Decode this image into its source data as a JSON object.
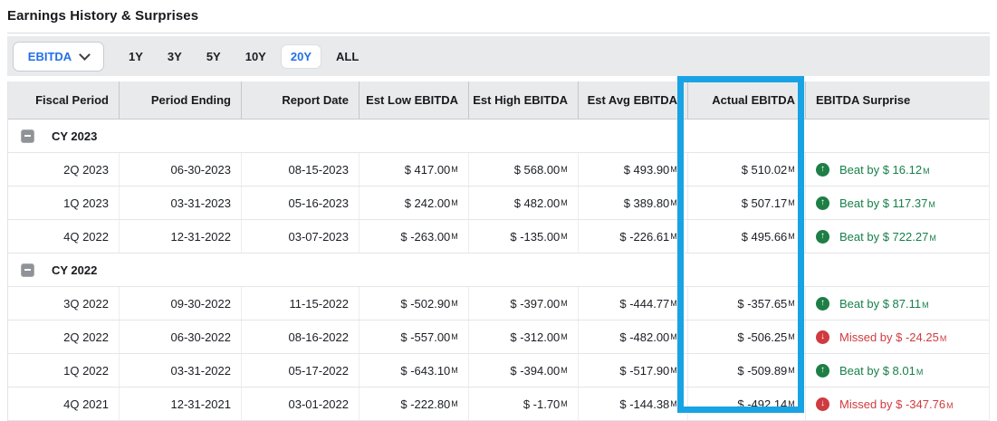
{
  "title": "Earnings History & Surprises",
  "toolbar": {
    "metric_label": "EBITDA",
    "ranges": [
      {
        "label": "1Y",
        "selected": false
      },
      {
        "label": "3Y",
        "selected": false
      },
      {
        "label": "5Y",
        "selected": false
      },
      {
        "label": "10Y",
        "selected": false
      },
      {
        "label": "20Y",
        "selected": true
      },
      {
        "label": "ALL",
        "selected": false
      }
    ]
  },
  "table": {
    "columns": [
      "Fiscal Period",
      "Period Ending",
      "Report Date",
      "Est Low EBITDA",
      "Est High EBITDA",
      "Est Avg EBITDA",
      "Actual EBITDA",
      "EBITDA Surprise"
    ],
    "highlighted_column": "Actual EBITDA",
    "money_suffix": "M",
    "groups": [
      {
        "label": "CY 2023",
        "collapsed": false,
        "rows": [
          {
            "fiscal": "2Q 2023",
            "ending": "06-30-2023",
            "report": "08-15-2023",
            "low": "$ 417.00",
            "high": "$ 568.00",
            "avg": "$ 493.90",
            "actual": "$ 510.02",
            "surprise": {
              "dir": "up",
              "text": "Beat by $ 16.12"
            }
          },
          {
            "fiscal": "1Q 2023",
            "ending": "03-31-2023",
            "report": "05-16-2023",
            "low": "$ 242.00",
            "high": "$ 482.00",
            "avg": "$ 389.80",
            "actual": "$ 507.17",
            "surprise": {
              "dir": "up",
              "text": "Beat by $ 117.37"
            }
          },
          {
            "fiscal": "4Q 2022",
            "ending": "12-31-2022",
            "report": "03-07-2023",
            "low": "$ -263.00",
            "high": "$ -135.00",
            "avg": "$ -226.61",
            "actual": "$ 495.66",
            "surprise": {
              "dir": "up",
              "text": "Beat by $ 722.27"
            }
          }
        ]
      },
      {
        "label": "CY 2022",
        "collapsed": false,
        "rows": [
          {
            "fiscal": "3Q 2022",
            "ending": "09-30-2022",
            "report": "11-15-2022",
            "low": "$ -502.90",
            "high": "$ -397.00",
            "avg": "$ -444.77",
            "actual": "$ -357.65",
            "surprise": {
              "dir": "up",
              "text": "Beat by $ 87.11"
            }
          },
          {
            "fiscal": "2Q 2022",
            "ending": "06-30-2022",
            "report": "08-16-2022",
            "low": "$ -557.00",
            "high": "$ -312.00",
            "avg": "$ -482.00",
            "actual": "$ -506.25",
            "surprise": {
              "dir": "down",
              "text": "Missed by $ -24.25"
            }
          },
          {
            "fiscal": "1Q 2022",
            "ending": "03-31-2022",
            "report": "05-17-2022",
            "low": "$ -643.10",
            "high": "$ -394.00",
            "avg": "$ -517.90",
            "actual": "$ -509.89",
            "surprise": {
              "dir": "up",
              "text": "Beat by $ 8.01"
            }
          },
          {
            "fiscal": "4Q 2021",
            "ending": "12-31-2021",
            "report": "03-01-2022",
            "low": "$ -222.80",
            "high": "$ -1.70",
            "avg": "$ -144.38",
            "actual": "$ -492.14",
            "surprise": {
              "dir": "down",
              "text": "Missed by $ -347.76"
            }
          }
        ]
      }
    ]
  },
  "colors": {
    "accent_blue": "#2270e5",
    "highlight_border_blue": "#18a3e4",
    "positive_green": "#17804a",
    "negative_red": "#d03b3e",
    "toolbar_background": "#e9eaec"
  }
}
